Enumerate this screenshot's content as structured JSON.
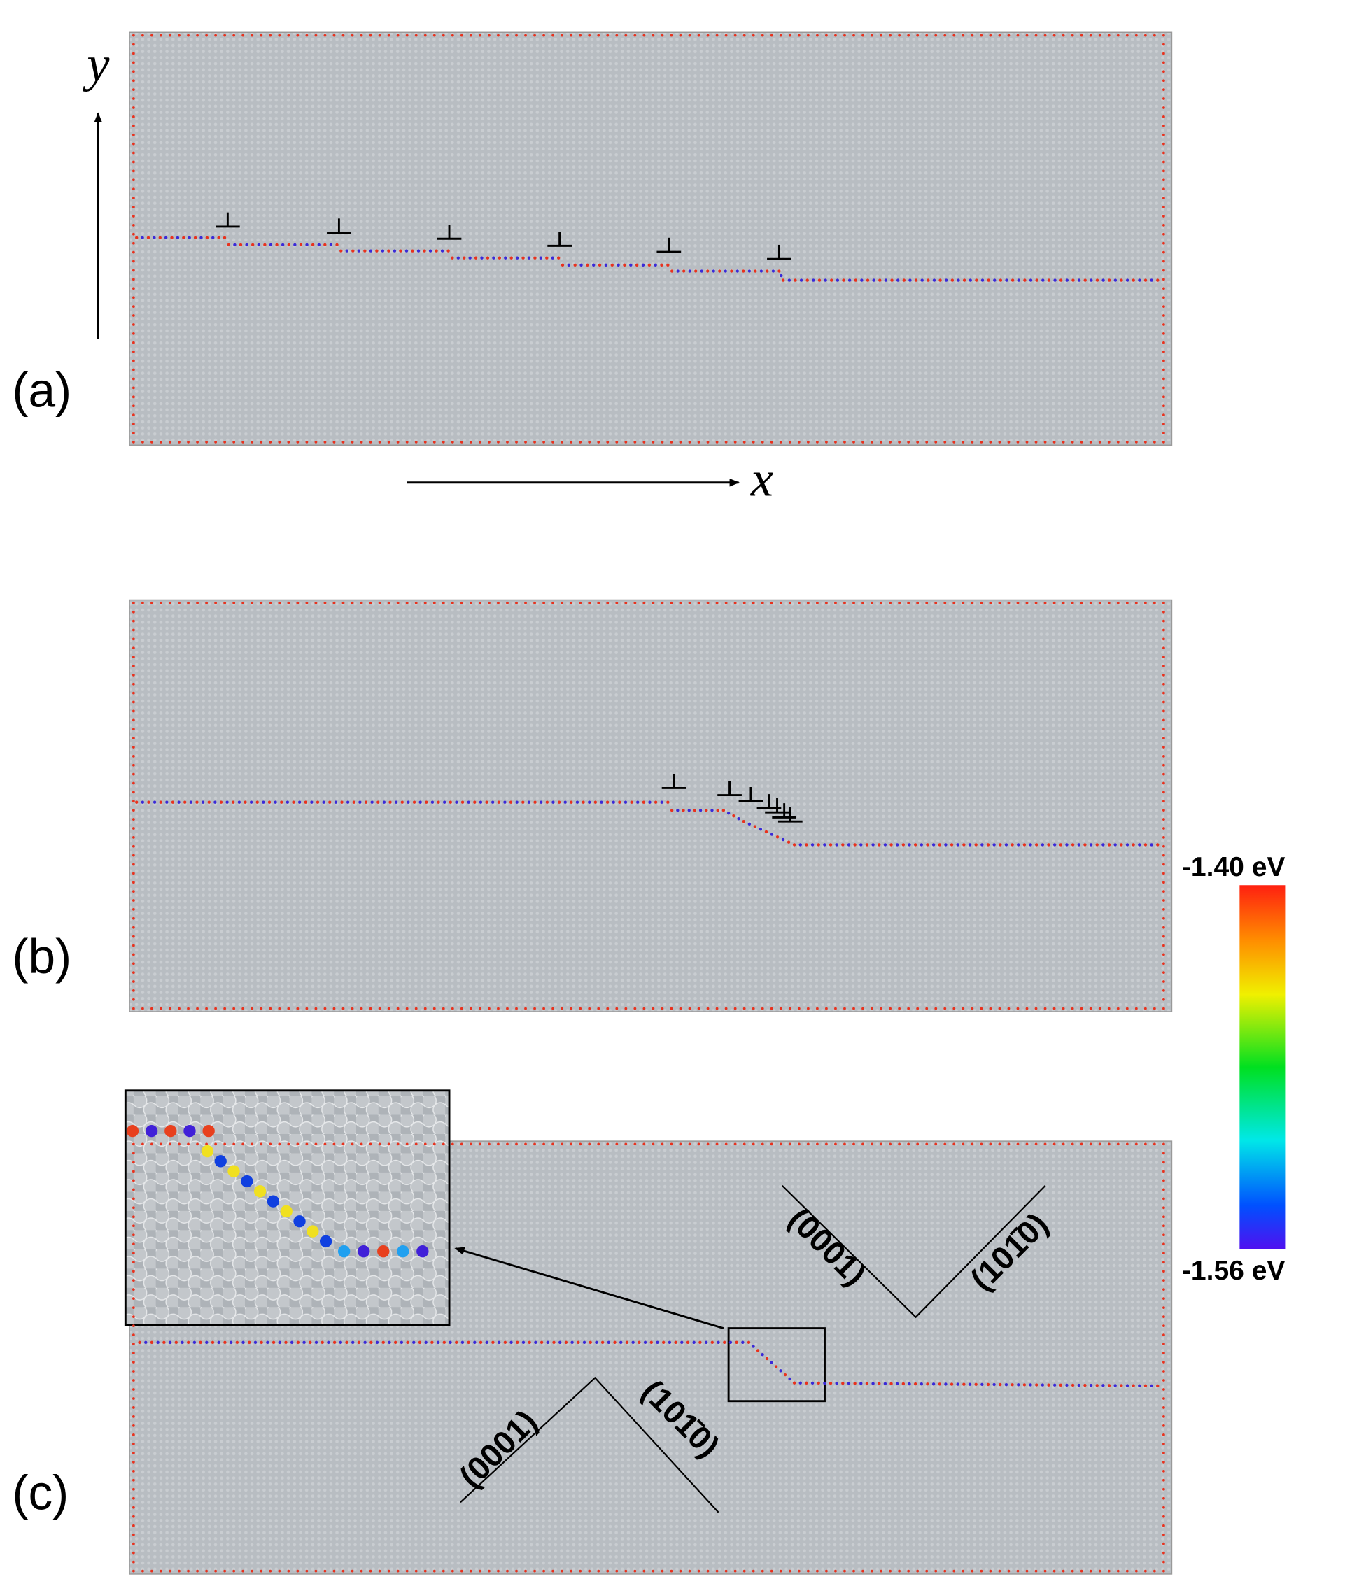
{
  "panels": [
    {
      "label": "(a)"
    },
    {
      "label": "(b)"
    },
    {
      "label": "(c)"
    }
  ],
  "axes": {
    "y": "y",
    "x": "x"
  },
  "colorbar": {
    "max_label": "-1.40 eV",
    "min_label": "-1.56 eV"
  },
  "plane_labels": {
    "bottom_left": "(0001)",
    "bottom_right": "(101̄0)",
    "top_left": "(0001)",
    "top_right": "(101̄0)"
  }
}
